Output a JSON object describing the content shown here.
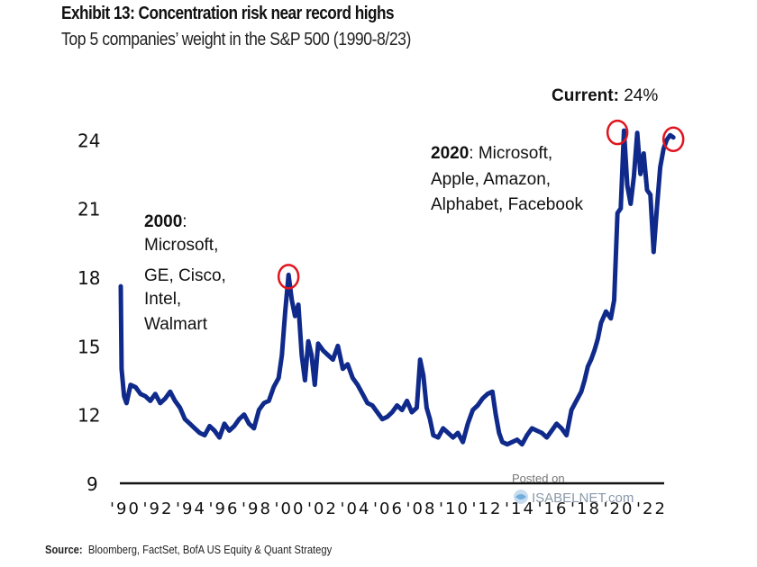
{
  "header": {
    "title": "Exhibit 13: Concentration risk near record highs",
    "subtitle": "Top 5 companies’ weight in the S&P 500 (1990-8/23)"
  },
  "footer": {
    "source_label": "Source:",
    "source_text": "Bloomberg, FactSet, BofA US Equity & Quant Strategy"
  },
  "watermark": {
    "line1": "Posted on",
    "line2": "ISABELNET.com"
  },
  "colors": {
    "series": "#0f2a8a",
    "highlight_circle": "#e0141e",
    "axis": "#111111"
  },
  "chart_data": {
    "type": "line",
    "title": "Exhibit 13: Concentration risk near record highs",
    "subtitle": "Top 5 companies’ weight in the S&P 500 (1990-8/23)",
    "xlabel": "",
    "ylabel": "",
    "ylim": [
      9,
      25
    ],
    "xlim": [
      1990,
      2023.7
    ],
    "grid": false,
    "yticks": [
      9,
      12,
      15,
      18,
      21,
      24
    ],
    "ytick_labels": [
      "9",
      "12",
      "15",
      "18",
      "21",
      "24"
    ],
    "xticks": [
      1990,
      1992,
      1994,
      1996,
      1998,
      2000,
      2002,
      2004,
      2006,
      2008,
      2010,
      2012,
      2014,
      2016,
      2018,
      2020,
      2022
    ],
    "xtick_labels": [
      "'90",
      "'92",
      "'94",
      "'96",
      "'98",
      "'00",
      "'02",
      "'04",
      "'06",
      "'08",
      "'10",
      "'12",
      "'14",
      "'16",
      "'18",
      "'20",
      "'22"
    ],
    "series": [
      {
        "name": "Top 5 weight (%)",
        "x": [
          1990.0,
          1990.05,
          1990.2,
          1990.35,
          1990.6,
          1990.9,
          1991.2,
          1991.5,
          1991.8,
          1992.1,
          1992.4,
          1992.7,
          1993.0,
          1993.3,
          1993.6,
          1993.9,
          1994.2,
          1994.5,
          1994.8,
          1995.1,
          1995.4,
          1995.7,
          1996.0,
          1996.3,
          1996.6,
          1996.9,
          1997.2,
          1997.5,
          1997.8,
          1998.1,
          1998.4,
          1998.7,
          1999.0,
          1999.3,
          1999.6,
          1999.8,
          2000.0,
          2000.2,
          2000.4,
          2000.6,
          2000.8,
          2001.0,
          2001.2,
          2001.4,
          2001.6,
          2001.8,
          2002.0,
          2002.3,
          2002.6,
          2002.9,
          2003.2,
          2003.5,
          2003.8,
          2004.1,
          2004.4,
          2004.7,
          2005.0,
          2005.3,
          2005.6,
          2005.9,
          2006.2,
          2006.5,
          2006.8,
          2007.1,
          2007.4,
          2007.7,
          2008.0,
          2008.2,
          2008.4,
          2008.6,
          2008.8,
          2009.0,
          2009.3,
          2009.6,
          2009.9,
          2010.2,
          2010.5,
          2010.8,
          2011.1,
          2011.4,
          2011.7,
          2012.0,
          2012.3,
          2012.6,
          2012.8,
          2013.0,
          2013.2,
          2013.5,
          2013.8,
          2014.1,
          2014.4,
          2014.7,
          2015.0,
          2015.3,
          2015.6,
          2015.9,
          2016.2,
          2016.5,
          2016.8,
          2017.1,
          2017.4,
          2017.7,
          2018.0,
          2018.2,
          2018.4,
          2018.6,
          2018.8,
          2019.0,
          2019.2,
          2019.5,
          2019.8,
          2020.0,
          2020.2,
          2020.4,
          2020.6,
          2020.8,
          2021.0,
          2021.2,
          2021.4,
          2021.6,
          2021.8,
          2022.0,
          2022.2,
          2022.4,
          2022.6,
          2022.8,
          2023.0,
          2023.2,
          2023.4,
          2023.6
        ],
        "values": [
          17.6,
          14.0,
          12.8,
          12.5,
          13.3,
          13.2,
          12.9,
          12.8,
          12.6,
          12.9,
          12.5,
          12.7,
          13.0,
          12.6,
          12.3,
          11.8,
          11.6,
          11.4,
          11.2,
          11.1,
          11.5,
          11.3,
          11.0,
          11.6,
          11.3,
          11.5,
          11.8,
          12.0,
          11.6,
          11.4,
          12.2,
          12.5,
          12.6,
          13.2,
          13.6,
          14.6,
          16.5,
          18.1,
          17.0,
          16.3,
          16.8,
          14.6,
          13.5,
          15.2,
          14.6,
          13.3,
          15.1,
          14.8,
          14.6,
          14.4,
          15.0,
          14.0,
          14.2,
          13.6,
          13.3,
          12.9,
          12.5,
          12.4,
          12.1,
          11.8,
          11.9,
          12.1,
          12.4,
          12.2,
          12.6,
          12.1,
          12.3,
          14.4,
          13.7,
          12.3,
          11.8,
          11.1,
          11.0,
          11.4,
          11.2,
          11.0,
          11.2,
          10.8,
          11.6,
          12.2,
          12.4,
          12.7,
          12.9,
          13.0,
          12.0,
          11.2,
          10.8,
          10.7,
          10.8,
          10.9,
          10.7,
          11.1,
          11.4,
          11.3,
          11.2,
          11.0,
          11.3,
          11.6,
          11.4,
          11.1,
          12.2,
          12.6,
          13.0,
          13.5,
          14.1,
          14.4,
          14.8,
          15.3,
          16.0,
          16.5,
          16.2,
          17.0,
          20.8,
          21.0,
          24.4,
          22.0,
          21.2,
          22.4,
          24.3,
          22.5,
          23.4,
          21.8,
          21.6,
          19.1,
          21.0,
          22.8,
          23.6,
          24.0,
          24.2,
          24.1
        ]
      }
    ],
    "annotations": [
      {
        "bold": "2000",
        "text": ": Microsoft, GE, Cisco, Intel, Walmart"
      },
      {
        "bold": "2020",
        "text": ": Microsoft, Apple, Amazon, Alphabet, Facebook"
      },
      {
        "bold": "Current:",
        "text": " 24%"
      }
    ],
    "highlighted_points": [
      {
        "x": 2000.2,
        "value": 18.1
      },
      {
        "x": 2020.2,
        "value": 24.4
      },
      {
        "x": 2023.6,
        "value": 24.1
      }
    ]
  }
}
